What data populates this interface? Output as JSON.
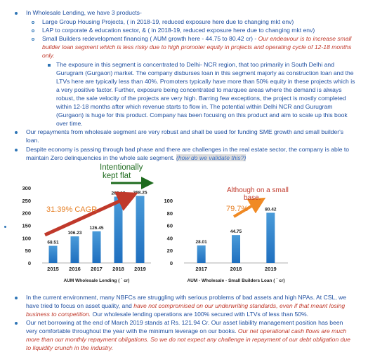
{
  "bullets": {
    "b1": "In Wholesale Lending, we have 3 products-",
    "b1_sub": [
      "Large Group Housing Projects,  ( in 2018-19, reduced exposure here due to changing mkt env)",
      "LAP to corporate & education sector, &  ( in 2018-19, reduced exposure here due to changing mkt env)"
    ],
    "b1_sub3": {
      "plain": "Small Builders redevelopment financing  ( AUM growth here - 44.75 to 80.42 cr) - ",
      "italic_line1": "Our endeavour is to increase small",
      "italic_line2": "builder loan segment which is less risky due to high promoter equity in projects and operating cycle of 12-18 months",
      "italic_line3": "only."
    },
    "b1_detail_lines": [
      "The exposure in this segment is concentrated to Delhi- NCR region, that too primarily in South Delhi and",
      "Gurugram (Gurgaon) market. The company disburses loan in this segment majorly as construction loan and the",
      "LTVs here are typically less than 40%. Promoters typically have more than 50% equity in these projects which is",
      "a very positive factor. Further, exposure being concentrated to marquee areas where the demand is always",
      "robust, the sale velocity of the projects are very high. Barring few exceptions, the project is mostly completed",
      "within 12-18 months after which revenue starts to flow in. The potential within Delhi NCR and Gurugram",
      "(Gurgaon) is huge for this product. Company has been focusing on this product and aim to scale up this book",
      "over time."
    ],
    "b2_lines": [
      "Our repayments from wholesale segment are very robust and shall be used for funding SME growth and small builder's",
      "loan."
    ],
    "b3_line1": "Despite economy is passing through bad phase and there are challenges in the real estate sector, the company is able to",
    "b3_line2_plain": "maintain Zero delinquencies in the whole sale segment. ",
    "b3_highlight": "(how do we validate this?)",
    "b4_lines_plain": [
      "In the current environment, many NBFCs are struggling with serious problems of bad assets and high NPAs. At CSL, we",
      "have tried to focus on asset quality, and "
    ],
    "b4_italic_1": "have not compromised on our underwriting standards, even if that meant losing",
    "b4_italic_2": "business to competition.",
    "b4_plain_end": " Our wholesale lending operations are 100% secured with LTVs of less than 50%.",
    "b5_line1": "Our net borrowing at the end of March 2019 stands at Rs. 121.94 Cr. Our asset liability management position has been",
    "b5_line2_plain": "very comfortable throughout the year with the minimum leverage on our books. ",
    "b5_line2_italic": "Our net operational cash flows are much",
    "b5_line3_italic": "more than our monthly repayment obligations. So we do not expect any challenge in repayment of our debt obligation due",
    "b5_line4_italic": "to liquidity crunch in the industry."
  },
  "annotations": {
    "kept_flat_1": "Intentionally",
    "kept_flat_2": "kept flat",
    "cagr": "31.39% CAGR",
    "small_base_1": "Although on a small",
    "small_base_2": "base.",
    "growth": "79.7%"
  },
  "colors": {
    "text": "#1f4fa0",
    "bar": "#1f6fbf",
    "bar_light": "#4a9bd9",
    "red": "#c0392b",
    "arrow_red": "#c0392b",
    "arrow_green": "#1e6b1e",
    "arrow_orange": "#f08a24"
  },
  "chart_data": [
    {
      "type": "bar",
      "title": "AUM Wholesale Lending ( ` cr)",
      "categories": [
        "2015",
        "2016",
        "2017",
        "2018",
        "2019"
      ],
      "values": [
        68.51,
        106.23,
        126.45,
        265.19,
        268.25
      ],
      "value_labels": [
        "68.51",
        "106.23",
        "126.45",
        "265.19",
        "268.25"
      ],
      "yticks": [
        "0",
        "50",
        "100",
        "150",
        "200",
        "250",
        "300"
      ],
      "ylim": [
        0,
        300
      ],
      "grid": false
    },
    {
      "type": "bar",
      "title": "AUM - Wholesale - Small Builders Loan ( ` cr)",
      "categories": [
        "2017",
        "2018",
        "2019"
      ],
      "values": [
        28.01,
        44.75,
        80.42
      ],
      "value_labels": [
        "28.01",
        "44.75",
        "80.42"
      ],
      "yticks": [
        "0",
        "20",
        "40",
        "60",
        "80",
        "100"
      ],
      "ylim": [
        0,
        100
      ],
      "grid": false
    }
  ]
}
